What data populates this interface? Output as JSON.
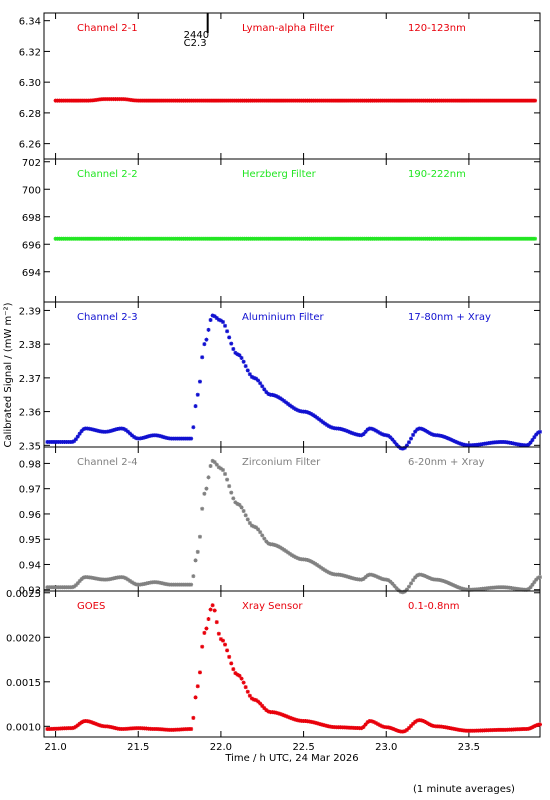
{
  "ylabel": "Calibrated Signal / (mW m⁻²)",
  "xlabel": "Time / h UTC, 24 Mar 2026",
  "footnote": "(1 minute averages)",
  "marker": {
    "line1": "2440",
    "line2": "C2.3",
    "x": 21.92
  },
  "chart_data": [
    {
      "type": "scatter",
      "labels": [
        "Channel 2-1",
        "Lyman-alpha Filter",
        "120-123nm"
      ],
      "color": "#e8000b",
      "xlim": [
        20.93,
        23.93
      ],
      "ylim": [
        6.25,
        6.345
      ],
      "yticks": [
        6.26,
        6.28,
        6.3,
        6.32,
        6.34
      ],
      "ytick_labels": [
        "6.26",
        "6.28",
        "6.30",
        "6.32",
        "6.34"
      ],
      "x": [
        21.0,
        21.2,
        21.3,
        21.4,
        21.5,
        22.0,
        22.5,
        23.0,
        23.5,
        23.9
      ],
      "y": [
        6.288,
        6.288,
        6.289,
        6.289,
        6.288,
        6.288,
        6.288,
        6.288,
        6.288,
        6.288
      ]
    },
    {
      "type": "scatter",
      "labels": [
        "Channel 2-2",
        "Herzberg Filter",
        "190-222nm"
      ],
      "color": "#22e622",
      "xlim": [
        20.93,
        23.93
      ],
      "ylim": [
        691.8,
        702.2
      ],
      "yticks": [
        694,
        696,
        698,
        700,
        702
      ],
      "ytick_labels": [
        "694",
        "696",
        "698",
        "700",
        "702"
      ],
      "x": [
        21.0,
        21.5,
        22.0,
        22.5,
        23.0,
        23.5,
        23.9
      ],
      "y": [
        696.4,
        696.4,
        696.4,
        696.4,
        696.4,
        696.4,
        696.4
      ]
    },
    {
      "type": "scatter",
      "labels": [
        "Channel 2-3",
        "Aluminium Filter",
        "17-80nm + Xray"
      ],
      "color": "#1010d0",
      "xlim": [
        20.93,
        23.93
      ],
      "ylim": [
        2.3495,
        2.3925
      ],
      "yticks": [
        2.35,
        2.36,
        2.37,
        2.38,
        2.39
      ],
      "ytick_labels": [
        "2.35",
        "2.36",
        "2.37",
        "2.38",
        "2.39"
      ],
      "x": [
        20.95,
        21.1,
        21.18,
        21.3,
        21.4,
        21.5,
        21.6,
        21.7,
        21.82,
        21.86,
        21.9,
        21.95,
        22.0,
        22.1,
        22.2,
        22.3,
        22.5,
        22.7,
        22.85,
        22.9,
        23.0,
        23.1,
        23.2,
        23.3,
        23.5,
        23.7,
        23.85,
        23.93
      ],
      "y": [
        2.351,
        2.351,
        2.355,
        2.354,
        2.355,
        2.352,
        2.353,
        2.352,
        2.352,
        2.365,
        2.38,
        2.3885,
        2.387,
        2.377,
        2.37,
        2.365,
        2.36,
        2.355,
        2.353,
        2.355,
        2.353,
        2.349,
        2.355,
        2.353,
        2.35,
        2.351,
        2.35,
        2.354
      ]
    },
    {
      "type": "scatter",
      "labels": [
        "Channel 2-4",
        "Zirconium Filter",
        "6-20nm + Xray"
      ],
      "color": "#808080",
      "xlim": [
        20.93,
        23.93
      ],
      "ylim": [
        0.9295,
        0.9865
      ],
      "yticks": [
        0.93,
        0.94,
        0.95,
        0.96,
        0.97,
        0.98
      ],
      "ytick_labels": [
        "0.93",
        "0.94",
        "0.95",
        "0.96",
        "0.97",
        "0.98"
      ],
      "x": [
        20.95,
        21.1,
        21.18,
        21.3,
        21.4,
        21.5,
        21.6,
        21.7,
        21.82,
        21.86,
        21.9,
        21.95,
        22.0,
        22.1,
        22.2,
        22.3,
        22.5,
        22.7,
        22.85,
        22.9,
        23.0,
        23.1,
        23.2,
        23.3,
        23.5,
        23.7,
        23.85,
        23.93
      ],
      "y": [
        0.931,
        0.931,
        0.935,
        0.934,
        0.935,
        0.932,
        0.933,
        0.932,
        0.932,
        0.945,
        0.968,
        0.981,
        0.978,
        0.964,
        0.955,
        0.948,
        0.942,
        0.936,
        0.934,
        0.936,
        0.934,
        0.929,
        0.936,
        0.934,
        0.93,
        0.931,
        0.93,
        0.935
      ]
    },
    {
      "type": "scatter",
      "labels": [
        "GOES",
        "Xray Sensor",
        "0.1-0.8nm"
      ],
      "color": "#e8000b",
      "xlim": [
        20.93,
        23.93
      ],
      "ylim": [
        0.00088,
        0.00252
      ],
      "yticks": [
        0.001,
        0.0015,
        0.002,
        0.0025
      ],
      "ytick_labels": [
        "0.0010",
        "0.0015",
        "0.0020",
        "0.0025"
      ],
      "x": [
        20.95,
        21.1,
        21.18,
        21.3,
        21.4,
        21.5,
        21.6,
        21.7,
        21.82,
        21.86,
        21.9,
        21.95,
        22.0,
        22.1,
        22.2,
        22.3,
        22.5,
        22.7,
        22.85,
        22.9,
        23.0,
        23.1,
        23.2,
        23.3,
        23.5,
        23.7,
        23.85,
        23.93
      ],
      "y": [
        0.00097,
        0.00098,
        0.00106,
        0.001,
        0.00097,
        0.00098,
        0.00097,
        0.00096,
        0.00097,
        0.00145,
        0.00205,
        0.00236,
        0.00198,
        0.00158,
        0.0013,
        0.00116,
        0.00106,
        0.00099,
        0.00098,
        0.00106,
        0.00099,
        0.00094,
        0.00107,
        0.001,
        0.00095,
        0.00096,
        0.00097,
        0.00102
      ]
    }
  ],
  "xaxis": {
    "ticks": [
      21.0,
      21.5,
      22.0,
      22.5,
      23.0,
      23.5
    ],
    "tick_labels": [
      "21.0",
      "21.5",
      "22.0",
      "22.5",
      "23.0",
      "23.5"
    ]
  }
}
